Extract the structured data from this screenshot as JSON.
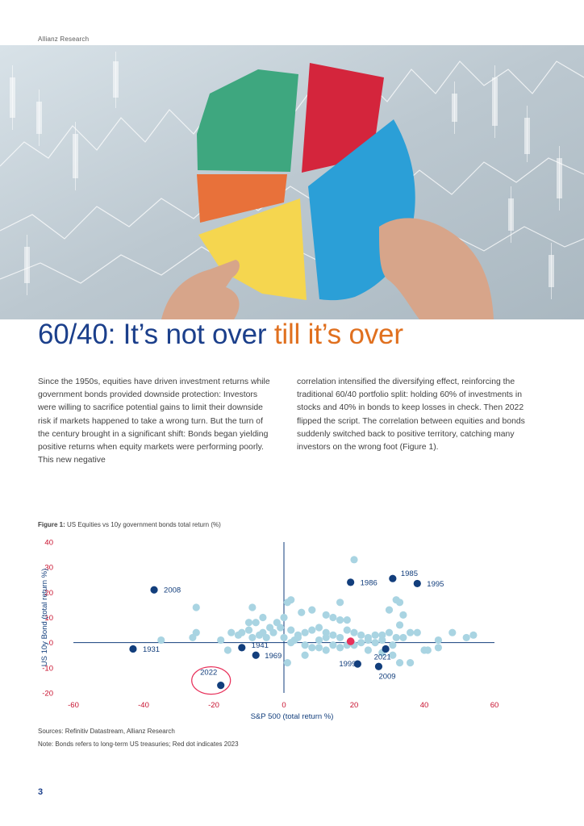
{
  "header": {
    "label": "Allianz Research"
  },
  "title": {
    "main": "60/40: It’s not over ",
    "accent": "till it’s over"
  },
  "body": {
    "left": "Since the 1950s, equities have driven investment returns while government bonds provided downside protection: Investors were willing to sacrifice potential gains to limit their downside risk if markets happened to take a wrong turn. But the turn of the century brought in a significant shift: Bonds began yielding positive returns when equity markets were performing poorly. This new negative",
    "right": "correlation intensified the diversifying effect, reinforcing the traditional 60/40 portfolio split: holding 60% of investments in stocks and 40% in bonds to keep losses in check. Then 2022 flipped the script. The correlation between equities and bonds suddenly switched back to positive territory, catching many investors on the wrong foot (Figure 1)."
  },
  "figure": {
    "label": "Figure 1:",
    "caption": "US Equities vs 10y government bonds total return (%)",
    "source": "Sources: Refinitiv Datastream, Allianz Research",
    "note": "Note: Bonds refers to long-term US treasuries; Red dot indicates 2023"
  },
  "chart_data": {
    "type": "scatter",
    "xlabel": "S&P 500 (total return %)",
    "ylabel": "US 10y Bond  (total return %)",
    "xlim": [
      -60,
      60
    ],
    "ylim": [
      -20,
      40
    ],
    "xticks": [
      "-60",
      "-40",
      "-20",
      "0",
      "20",
      "40",
      "60"
    ],
    "yticks": [
      "40",
      "30",
      "20",
      "10",
      "0",
      "-10",
      "-20"
    ],
    "colors": {
      "other": "#a9d4e2",
      "labeled": "#123e7c",
      "current": "#e8315b",
      "axis": "#123e7c",
      "circle": "#e8315b"
    },
    "other_points": [
      [
        20,
        33
      ],
      [
        33,
        16
      ],
      [
        32,
        17
      ],
      [
        1,
        16
      ],
      [
        16,
        16
      ],
      [
        2,
        17
      ],
      [
        -25,
        14
      ],
      [
        -9,
        14
      ],
      [
        -6,
        10
      ],
      [
        -12,
        4
      ],
      [
        -10,
        8
      ],
      [
        -8,
        8
      ],
      [
        -2,
        8
      ],
      [
        0,
        10
      ],
      [
        5,
        12
      ],
      [
        8,
        13
      ],
      [
        12,
        11
      ],
      [
        14,
        10
      ],
      [
        16,
        9
      ],
      [
        18,
        9
      ],
      [
        30,
        13
      ],
      [
        34,
        11
      ],
      [
        33,
        7
      ],
      [
        36,
        4
      ],
      [
        38,
        4
      ],
      [
        48,
        4
      ],
      [
        52,
        2
      ],
      [
        54,
        3
      ],
      [
        44,
        1
      ],
      [
        44,
        -2
      ],
      [
        -15,
        4
      ],
      [
        -13,
        3
      ],
      [
        -10,
        5
      ],
      [
        -9,
        2
      ],
      [
        -7,
        3
      ],
      [
        -5,
        2
      ],
      [
        -3,
        4
      ],
      [
        -1,
        6
      ],
      [
        2,
        5
      ],
      [
        4,
        3
      ],
      [
        6,
        4
      ],
      [
        8,
        5
      ],
      [
        10,
        6
      ],
      [
        12,
        4
      ],
      [
        14,
        3
      ],
      [
        16,
        2
      ],
      [
        18,
        5
      ],
      [
        20,
        4
      ],
      [
        22,
        3
      ],
      [
        24,
        2
      ],
      [
        26,
        3
      ],
      [
        28,
        1
      ],
      [
        30,
        4
      ],
      [
        32,
        2
      ],
      [
        2,
        0
      ],
      [
        6,
        -1
      ],
      [
        10,
        -2
      ],
      [
        12,
        -3
      ],
      [
        14,
        -1
      ],
      [
        16,
        -2
      ],
      [
        18,
        -1
      ],
      [
        20,
        -1
      ],
      [
        24,
        -3
      ],
      [
        28,
        -4
      ],
      [
        31,
        -5
      ],
      [
        33,
        -8
      ],
      [
        36,
        -8
      ],
      [
        40,
        -3
      ],
      [
        -35,
        1
      ],
      [
        -26,
        2
      ],
      [
        -25,
        4
      ],
      [
        1,
        -8
      ],
      [
        6,
        -5
      ],
      [
        8,
        -2
      ],
      [
        10,
        1
      ],
      [
        4,
        2
      ],
      [
        26,
        0
      ],
      [
        22,
        0
      ],
      [
        31,
        -1
      ],
      [
        -6,
        4
      ],
      [
        -4,
        6
      ],
      [
        0,
        2
      ],
      [
        3,
        1
      ],
      [
        12,
        2
      ],
      [
        24,
        1
      ],
      [
        28,
        3
      ],
      [
        34,
        2
      ],
      [
        41,
        -3
      ],
      [
        -18,
        1
      ],
      [
        -16,
        -3
      ]
    ],
    "labeled_points": [
      {
        "x": 19,
        "y": 24,
        "label": "1986"
      },
      {
        "x": 31,
        "y": 25.5,
        "label": "1985"
      },
      {
        "x": 38,
        "y": 23.5,
        "label": "1995"
      },
      {
        "x": -37,
        "y": 21,
        "label": "2008"
      },
      {
        "x": -43,
        "y": -2.5,
        "label": "1931"
      },
      {
        "x": -12,
        "y": -2,
        "label": "1941"
      },
      {
        "x": -8,
        "y": -5,
        "label": "1969"
      },
      {
        "x": 29,
        "y": -2.5,
        "label": "2021"
      },
      {
        "x": 21,
        "y": -8.5,
        "label": "1999"
      },
      {
        "x": 27,
        "y": -9.5,
        "label": "2009"
      },
      {
        "x": -18,
        "y": -17,
        "label": "2022"
      }
    ],
    "current_point": {
      "x": 19,
      "y": 0.5
    }
  }
}
